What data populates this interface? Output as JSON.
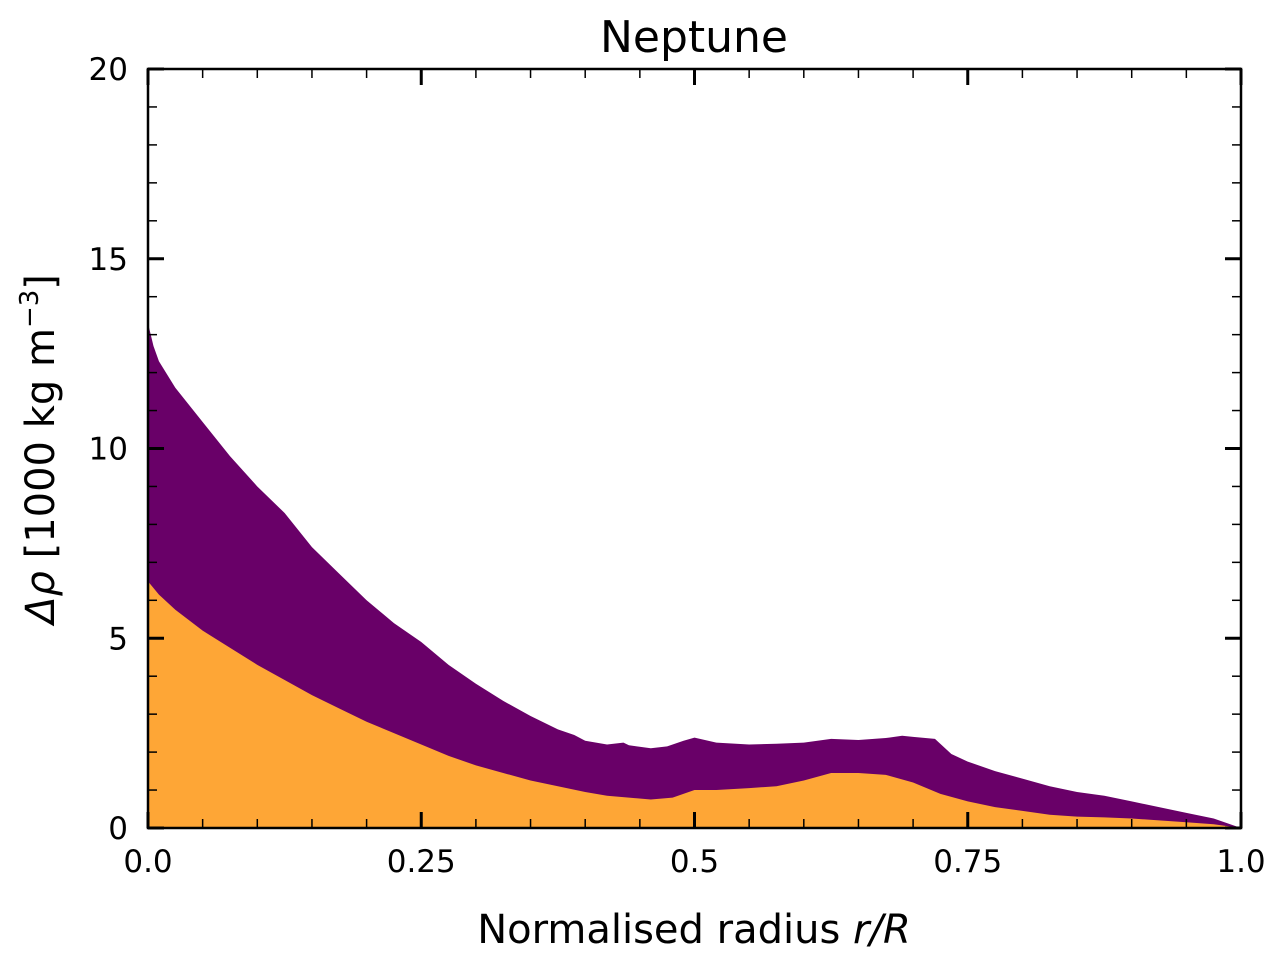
{
  "chart_data": {
    "type": "area",
    "title": "Neptune",
    "xlabel_main": "Normalised radius ",
    "xlabel_var": "r/R",
    "ylabel_symbol": "Δρ",
    "ylabel_units_open": " [1000 kg m",
    "ylabel_units_exp": "−3",
    "ylabel_units_close": "]",
    "xlim": [
      0,
      1
    ],
    "ylim": [
      0,
      20
    ],
    "x_ticks": [
      {
        "value": 0,
        "label": "0.0"
      },
      {
        "value": 0.25,
        "label": "0.25"
      },
      {
        "value": 0.5,
        "label": "0.5"
      },
      {
        "value": 0.75,
        "label": "0.75"
      },
      {
        "value": 1,
        "label": "1.0"
      }
    ],
    "y_ticks": [
      {
        "value": 0,
        "label": "0"
      },
      {
        "value": 5,
        "label": "5"
      },
      {
        "value": 10,
        "label": "10"
      },
      {
        "value": 15,
        "label": "15"
      },
      {
        "value": 20,
        "label": "20"
      }
    ],
    "grid": false,
    "series": [
      {
        "color": "#feA636",
        "x": [
          0,
          0.01,
          0.025,
          0.05,
          0.075,
          0.1,
          0.125,
          0.15,
          0.175,
          0.2,
          0.225,
          0.25,
          0.275,
          0.3,
          0.325,
          0.35,
          0.375,
          0.4,
          0.42,
          0.44,
          0.46,
          0.48,
          0.5,
          0.52,
          0.55,
          0.575,
          0.6,
          0.625,
          0.65,
          0.675,
          0.7,
          0.725,
          0.75,
          0.775,
          0.8,
          0.825,
          0.85,
          0.875,
          0.9,
          0.925,
          0.95,
          0.975,
          1.0
        ],
        "y": [
          6.5,
          6.15,
          5.75,
          5.2,
          4.75,
          4.3,
          3.9,
          3.5,
          3.15,
          2.8,
          2.5,
          2.2,
          1.9,
          1.65,
          1.45,
          1.25,
          1.1,
          0.95,
          0.85,
          0.8,
          0.75,
          0.8,
          1.0,
          1.0,
          1.05,
          1.1,
          1.25,
          1.45,
          1.45,
          1.4,
          1.2,
          0.9,
          0.7,
          0.55,
          0.45,
          0.35,
          0.3,
          0.28,
          0.25,
          0.2,
          0.15,
          0.1,
          0.0
        ]
      },
      {
        "color": "#690068",
        "x": [
          0,
          0.005,
          0.01,
          0.025,
          0.05,
          0.075,
          0.1,
          0.125,
          0.15,
          0.175,
          0.2,
          0.225,
          0.25,
          0.275,
          0.3,
          0.325,
          0.35,
          0.375,
          0.39,
          0.4,
          0.42,
          0.435,
          0.44,
          0.46,
          0.475,
          0.49,
          0.5,
          0.52,
          0.55,
          0.575,
          0.6,
          0.625,
          0.65,
          0.675,
          0.69,
          0.7,
          0.72,
          0.735,
          0.75,
          0.775,
          0.8,
          0.825,
          0.85,
          0.875,
          0.9,
          0.925,
          0.95,
          0.975,
          1.0
        ],
        "y": [
          13.3,
          12.7,
          12.3,
          11.6,
          10.7,
          9.8,
          9.0,
          8.3,
          7.4,
          6.7,
          6.0,
          5.4,
          4.9,
          4.3,
          3.8,
          3.35,
          2.95,
          2.6,
          2.45,
          2.3,
          2.2,
          2.25,
          2.18,
          2.1,
          2.15,
          2.3,
          2.38,
          2.25,
          2.2,
          2.22,
          2.25,
          2.35,
          2.32,
          2.37,
          2.43,
          2.4,
          2.35,
          1.95,
          1.75,
          1.5,
          1.3,
          1.1,
          0.95,
          0.85,
          0.7,
          0.55,
          0.4,
          0.25,
          0.0
        ]
      }
    ]
  }
}
